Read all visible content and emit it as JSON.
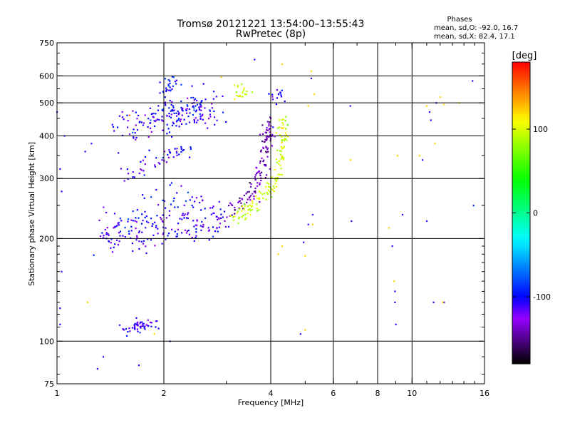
{
  "chart_data": {
    "type": "scatter",
    "title": "Tromsø 20121221 13:54:00–13:55:43",
    "subtitle": "RwPretec (8p)",
    "stats": {
      "heading": "Phases",
      "line1": "mean, sd,O: -92.0, 16.7",
      "line2": "mean, sd,X:  82.4, 17.1"
    },
    "xlabel": "Frequency [MHz]",
    "ylabel": "Stationary phase Virtual Height [km]",
    "x_scale": "log",
    "y_scale": "log",
    "xlim": [
      1,
      16
    ],
    "ylim": [
      75,
      750
    ],
    "x_ticks": [
      {
        "v": 1,
        "label": "1"
      },
      {
        "v": 2,
        "label": "2"
      },
      {
        "v": 4,
        "label": "4"
      },
      {
        "v": 6,
        "label": "6"
      },
      {
        "v": 8,
        "label": "8"
      },
      {
        "v": 10,
        "label": "10"
      },
      {
        "v": 16,
        "label": "16"
      }
    ],
    "y_ticks": [
      {
        "v": 75,
        "label": "75"
      },
      {
        "v": 100,
        "label": "100"
      },
      {
        "v": 200,
        "label": "200"
      },
      {
        "v": 300,
        "label": "300"
      },
      {
        "v": 400,
        "label": "400"
      },
      {
        "v": 500,
        "label": "500"
      },
      {
        "v": 600,
        "label": "600"
      },
      {
        "v": 750,
        "label": "750"
      }
    ],
    "grid": true,
    "colorbar": {
      "label": "[deg]",
      "range": [
        -180,
        180
      ],
      "ticks": [
        {
          "v": 100,
          "label": "100"
        },
        {
          "v": 0,
          "label": "0"
        },
        {
          "v": -100,
          "label": "-100"
        }
      ]
    },
    "traces": [
      {
        "points": [
          [
            1.55,
            108
          ],
          [
            1.65,
            110
          ],
          [
            1.75,
            112
          ],
          [
            1.85,
            111
          ]
        ],
        "phase": -108,
        "spread": [
          0.04,
          0.02
        ],
        "n": 50
      },
      {
        "points": [
          [
            1.33,
            202
          ],
          [
            1.6,
            205
          ],
          [
            2.0,
            210
          ],
          [
            2.5,
            218
          ],
          [
            3.0,
            228
          ]
        ],
        "phase": -110,
        "spread": [
          0.04,
          0.05
        ],
        "n": 150
      },
      {
        "points": [
          [
            1.4,
            225
          ],
          [
            1.8,
            235
          ],
          [
            2.2,
            250
          ],
          [
            2.6,
            260
          ]
        ],
        "phase": -105,
        "spread": [
          0.05,
          0.07
        ],
        "n": 70
      },
      {
        "points": [
          [
            3.0,
            235
          ],
          [
            3.3,
            250
          ],
          [
            3.6,
            280
          ],
          [
            3.8,
            330
          ],
          [
            3.9,
            380
          ],
          [
            3.95,
            430
          ]
        ],
        "phase": -140,
        "spread": [
          0.02,
          0.04
        ],
        "n": 130
      },
      {
        "points": [
          [
            3.1,
            225
          ],
          [
            3.5,
            245
          ],
          [
            3.9,
            270
          ],
          [
            4.2,
            310
          ],
          [
            4.3,
            380
          ],
          [
            4.35,
            460
          ]
        ],
        "phase": 95,
        "spread": [
          0.015,
          0.03
        ],
        "n": 130
      },
      {
        "points": [
          [
            1.55,
            300
          ],
          [
            1.8,
            330
          ],
          [
            2.1,
            355
          ],
          [
            2.4,
            375
          ]
        ],
        "phase": -110,
        "spread": [
          0.03,
          0.03
        ],
        "n": 50
      },
      {
        "points": [
          [
            1.55,
            430
          ],
          [
            1.9,
            440
          ],
          [
            2.3,
            455
          ],
          [
            2.7,
            470
          ]
        ],
        "phase": -110,
        "spread": [
          0.06,
          0.05
        ],
        "n": 130
      },
      {
        "points": [
          [
            2.0,
            470
          ],
          [
            2.3,
            480
          ],
          [
            2.7,
            510
          ]
        ],
        "phase": -100,
        "spread": [
          0.04,
          0.04
        ],
        "n": 60
      },
      {
        "points": [
          [
            2.0,
            540
          ],
          [
            2.1,
            575
          ]
        ],
        "phase": -100,
        "spread": [
          0.03,
          0.04
        ],
        "n": 30
      },
      {
        "points": [
          [
            3.1,
            540
          ],
          [
            3.4,
            550
          ]
        ],
        "phase": 95,
        "spread": [
          0.03,
          0.03
        ],
        "n": 20
      },
      {
        "points": [
          [
            4.0,
            520
          ],
          [
            4.2,
            540
          ]
        ],
        "phase": -105,
        "spread": [
          0.03,
          0.03
        ],
        "n": 15
      }
    ],
    "scatter_points": [
      [
        1.02,
        112,
        -110
      ],
      [
        1.02,
        125,
        -110
      ],
      [
        1.03,
        160,
        -110
      ],
      [
        1.02,
        320,
        -110
      ],
      [
        1.03,
        275,
        -110
      ],
      [
        1.22,
        130,
        120
      ],
      [
        1.3,
        83,
        -110
      ],
      [
        1.35,
        90,
        -110
      ],
      [
        1.7,
        85,
        -110
      ],
      [
        1.88,
        105,
        120
      ],
      [
        2.08,
        100,
        -150
      ],
      [
        4.2,
        180,
        120
      ],
      [
        4.3,
        190,
        120
      ],
      [
        4.95,
        195,
        -110
      ],
      [
        5.0,
        178,
        120
      ],
      [
        4.85,
        105,
        -110
      ],
      [
        5.0,
        108,
        120
      ],
      [
        5.25,
        220,
        120
      ],
      [
        5.25,
        235,
        -110
      ],
      [
        5.1,
        220,
        -110
      ],
      [
        5.2,
        590,
        -110
      ],
      [
        5.3,
        530,
        120
      ],
      [
        5.1,
        490,
        120
      ],
      [
        6.7,
        490,
        -110
      ],
      [
        6.75,
        225,
        -110
      ],
      [
        6.7,
        340,
        120
      ],
      [
        8.6,
        215,
        120
      ],
      [
        8.8,
        190,
        -110
      ],
      [
        8.9,
        150,
        120
      ],
      [
        8.95,
        140,
        -110
      ],
      [
        8.95,
        130,
        -110
      ],
      [
        9.0,
        112,
        -110
      ],
      [
        9.1,
        350,
        120
      ],
      [
        9.4,
        235,
        -110
      ],
      [
        10.5,
        350,
        120
      ],
      [
        10.7,
        340,
        -110
      ],
      [
        11.0,
        490,
        120
      ],
      [
        11.2,
        470,
        -110
      ],
      [
        12.0,
        520,
        120
      ],
      [
        11.7,
        500,
        -110
      ],
      [
        12.3,
        495,
        120
      ],
      [
        11.3,
        445,
        -110
      ],
      [
        11.6,
        380,
        120
      ],
      [
        11.0,
        225,
        -110
      ],
      [
        11.5,
        130,
        -110
      ],
      [
        12.3,
        130,
        -110
      ],
      [
        12.2,
        130,
        120
      ],
      [
        13.6,
        500,
        120
      ],
      [
        14.8,
        580,
        -110
      ],
      [
        14.9,
        250,
        -90
      ],
      [
        3.6,
        670,
        -110
      ],
      [
        4.3,
        650,
        120
      ],
      [
        5.2,
        620,
        120
      ],
      [
        2.4,
        560,
        -110
      ],
      [
        2.9,
        595,
        120
      ],
      [
        1.0,
        470,
        -110
      ],
      [
        1.05,
        400,
        -110
      ],
      [
        1.2,
        360,
        -110
      ],
      [
        1.6,
        460,
        150
      ],
      [
        1.25,
        380,
        -110
      ]
    ]
  }
}
